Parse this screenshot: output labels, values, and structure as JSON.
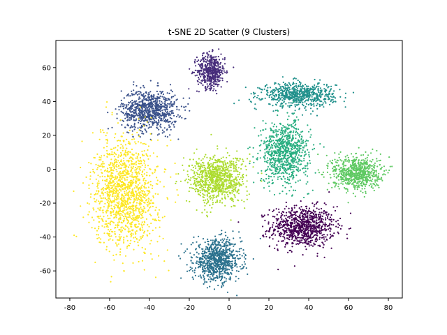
{
  "chart_data": {
    "type": "scatter",
    "title": "t-SNE 2D Scatter (9 Clusters)",
    "xlabel": "",
    "ylabel": "",
    "xlim": [
      -87,
      87
    ],
    "ylim": [
      -76,
      76
    ],
    "xticks": [
      -80,
      -60,
      -40,
      -20,
      0,
      20,
      40,
      60,
      80
    ],
    "yticks": [
      -60,
      -40,
      -20,
      0,
      20,
      40,
      60
    ],
    "grid": false,
    "legend": "none",
    "colormap": "viridis",
    "clusters": [
      {
        "id": 0,
        "color": "#440154",
        "center": [
          37,
          -34
        ],
        "spread": [
          8,
          6
        ],
        "points": 900
      },
      {
        "id": 1,
        "color": "#472d7b",
        "center": [
          -9,
          58
        ],
        "spread": [
          3.5,
          5
        ],
        "points": 500
      },
      {
        "id": 2,
        "color": "#3b528b",
        "center": [
          -40,
          35
        ],
        "spread": [
          7,
          6
        ],
        "points": 850
      },
      {
        "id": 3,
        "color": "#2c728e",
        "center": [
          -6,
          -54
        ],
        "spread": [
          6,
          6
        ],
        "points": 850
      },
      {
        "id": 4,
        "color": "#21918c",
        "center": [
          35,
          44
        ],
        "spread": [
          9,
          3.5
        ],
        "points": 700
      },
      {
        "id": 5,
        "color": "#28ae80",
        "center": [
          28,
          10
        ],
        "spread": [
          6,
          9
        ],
        "points": 850
      },
      {
        "id": 6,
        "color": "#5ec962",
        "center": [
          64,
          -2
        ],
        "spread": [
          6,
          5
        ],
        "points": 700
      },
      {
        "id": 7,
        "color": "#addc30",
        "center": [
          -6,
          -6
        ],
        "spread": [
          7,
          7
        ],
        "points": 900
      },
      {
        "id": 8,
        "color": "#fde725",
        "center": [
          -52,
          -14
        ],
        "spread": [
          8,
          16
        ],
        "points": 1400
      }
    ]
  }
}
